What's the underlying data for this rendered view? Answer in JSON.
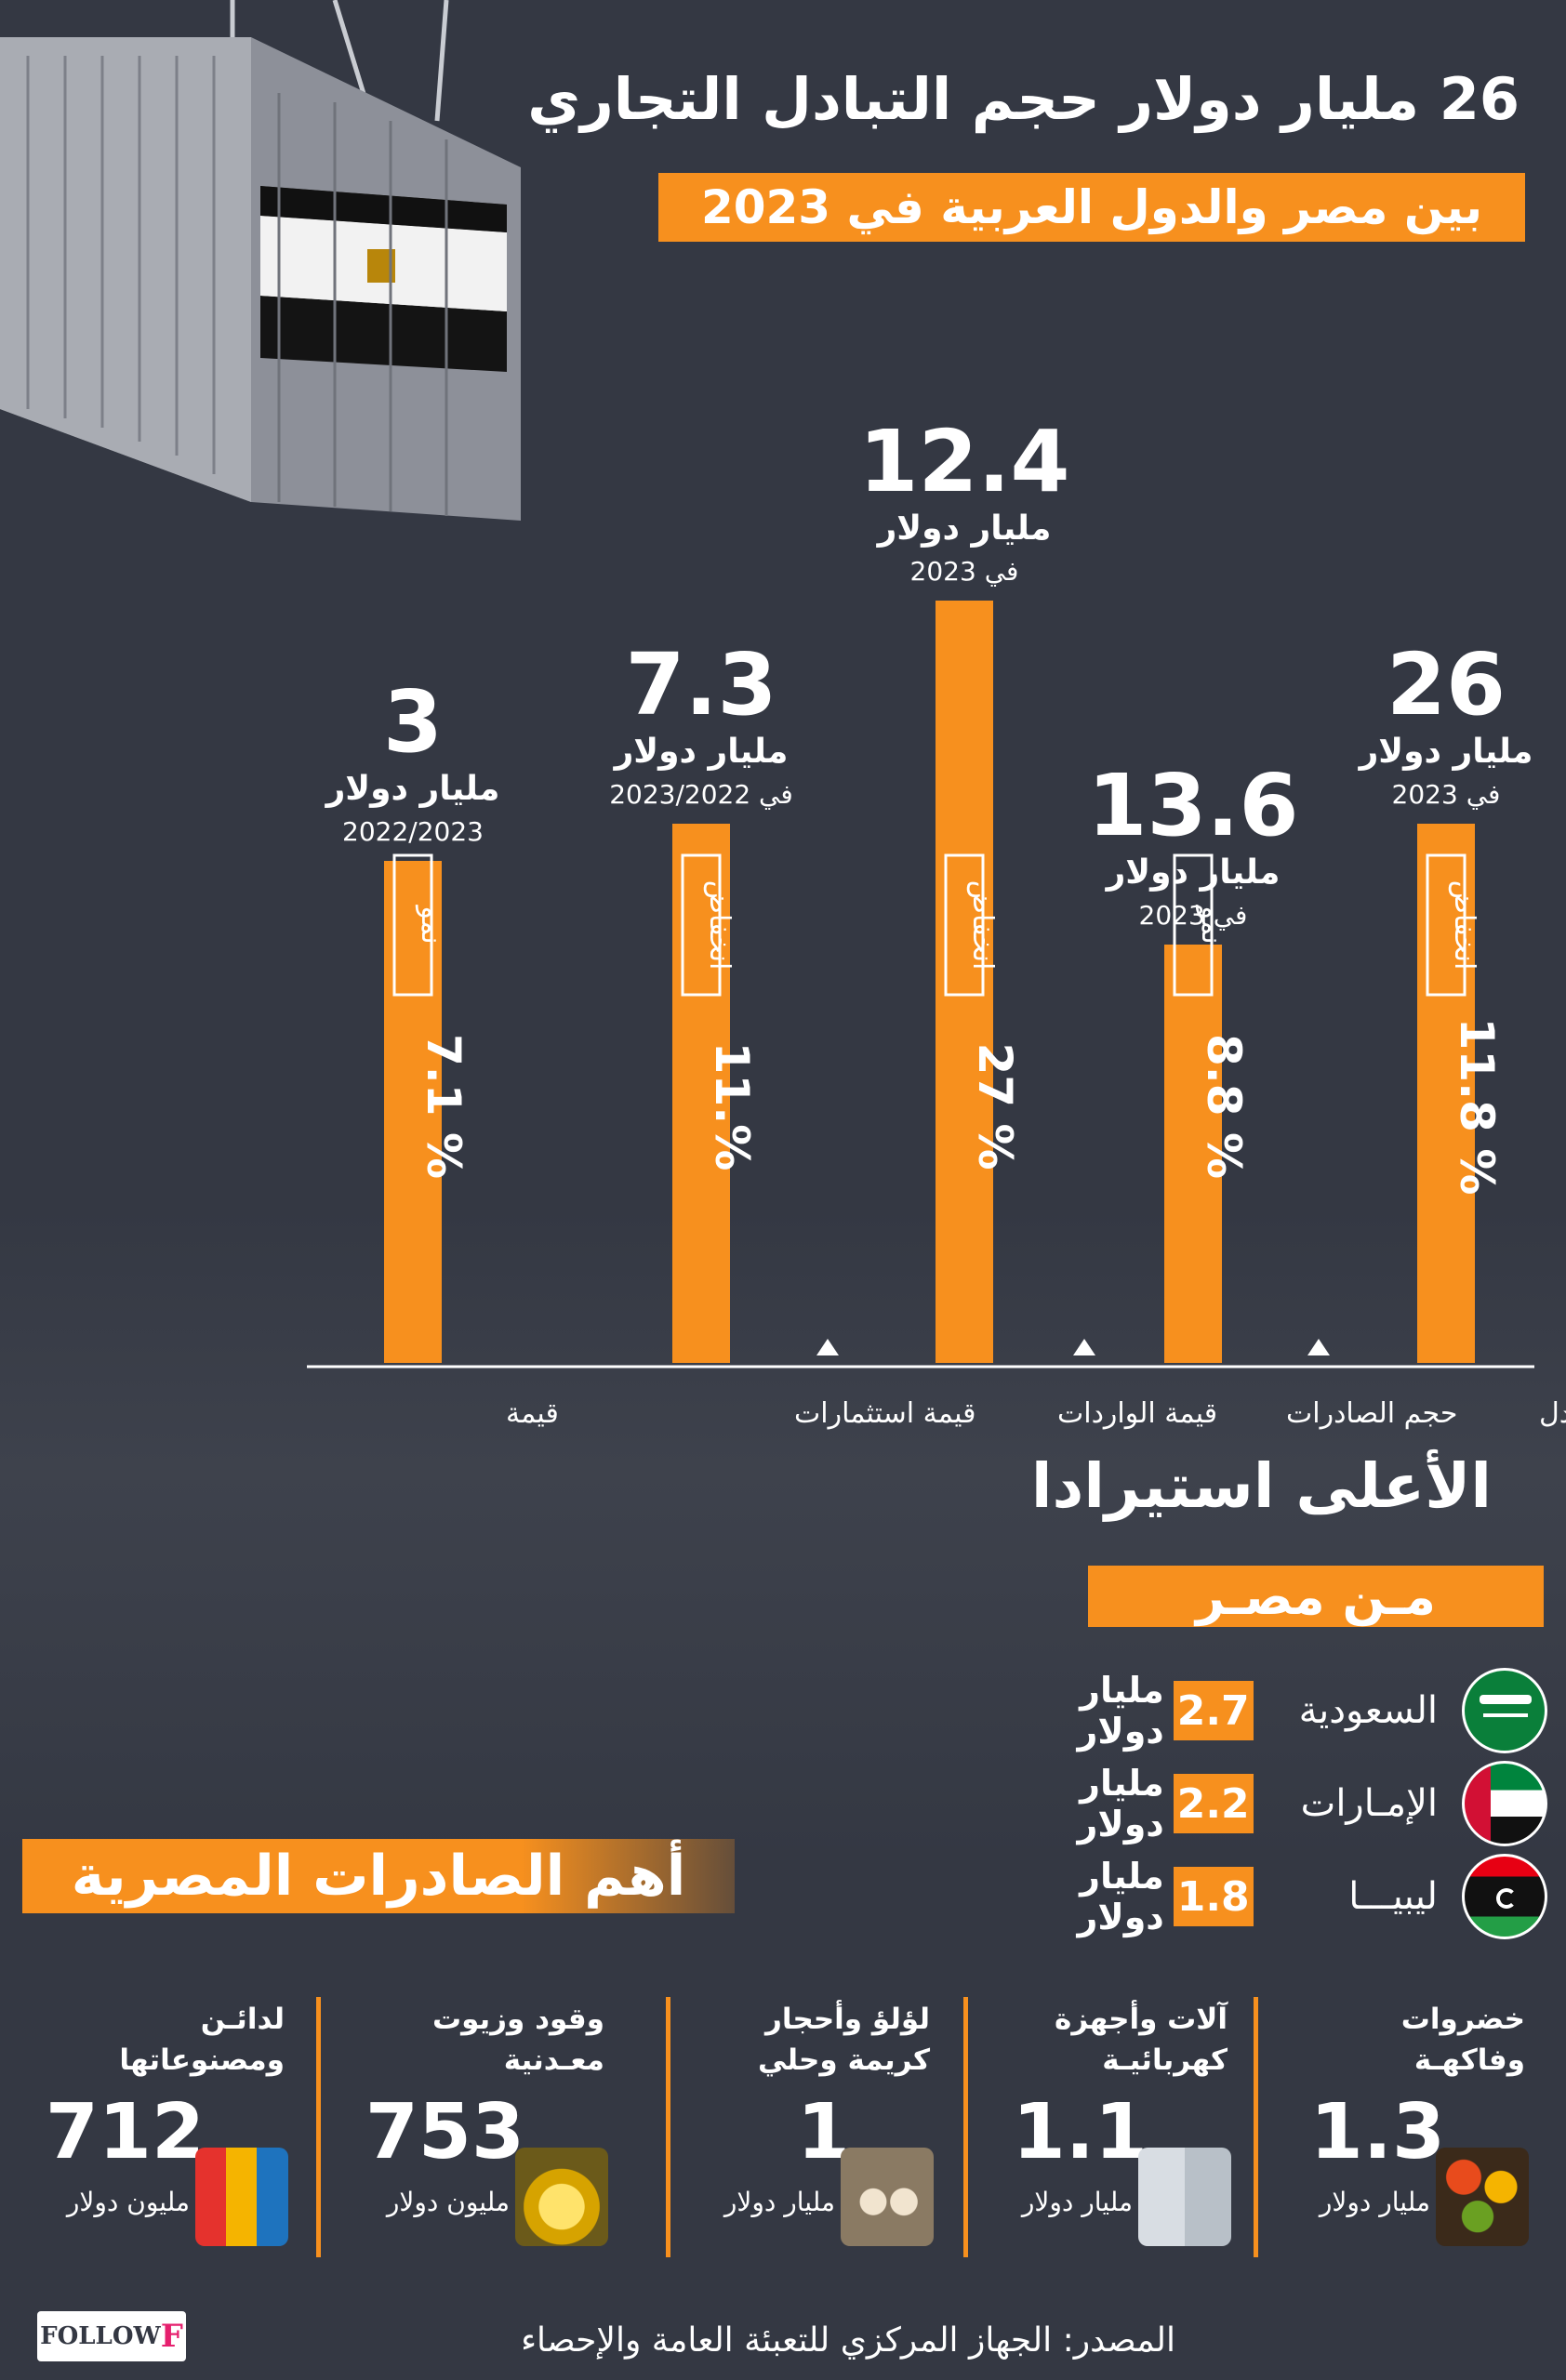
{
  "header": {
    "title": "26 مليار دولار حجم التبادل التجاري",
    "subtitle": "بين مصر والدول العربية في 2023"
  },
  "chart_data": {
    "type": "bar",
    "categories": [
      "حجم التبادل التجاري بين مصر والدول العربية",
      "حجم الصادرات المصرية",
      "قيمة الواردات المصرية",
      "قيمة استثمارات الدول العربية في مصر",
      "قيمة الاستثمارات المصرية في الدول العربية"
    ],
    "values": [
      26,
      13.6,
      12.4,
      7.3,
      3
    ],
    "value_labels": [
      "26",
      "13.6",
      "12.4",
      "7.3",
      "3"
    ],
    "unit": "مليار دولار",
    "periods": [
      "في 2023",
      "في 2023",
      "في 2023",
      "في 2023/2022",
      "2022/2023"
    ],
    "change_labels": [
      "11.8%",
      "8.8%",
      "27%",
      "11%",
      "7.1%"
    ],
    "change_texts": [
      "% 11.8",
      "% 8.8",
      "% 27",
      "%.11",
      "% 7.1"
    ],
    "change_direction": [
      "انخفاض",
      "نمو",
      "انخفاض",
      "انخفاض",
      "نمو"
    ],
    "bar_color": "#f7901e",
    "axis_ticks": "none"
  },
  "imports": {
    "title": "الأعلى استيرادا",
    "subtitle": "مـن مصـر",
    "unit": "مليار دولار",
    "rows": [
      {
        "country": "السعودية",
        "value": "2.7",
        "flag": "saudi-flag"
      },
      {
        "country": "الإمـارات",
        "value": "2.2",
        "flag": "uae-flag"
      },
      {
        "country": "ليبيـــا",
        "value": "1.8",
        "flag": "libya-flag"
      }
    ]
  },
  "exports": {
    "title": "أهم الصادرات المصرية",
    "items": [
      {
        "name": "خضروات وفاكهـة",
        "value": "1.3",
        "unit": "مليار دولار",
        "icon": "fruits-icon"
      },
      {
        "name": "آلات وأجهزة كهربائيـة",
        "value": "1.1",
        "unit": "مليار دولار",
        "icon": "appliances-icon"
      },
      {
        "name": "لؤلؤ وأحجار كريمة وحلي",
        "value": "1",
        "unit": "مليار دولار",
        "icon": "pearl-icon"
      },
      {
        "name": "وقود وزيوت معـدنية",
        "value": "753",
        "unit": "مليون دولار",
        "icon": "oil-icon"
      },
      {
        "name": "لدائـن ومصنوعاتها",
        "value": "712",
        "unit": "مليون دولار",
        "icon": "plastics-icon"
      }
    ]
  },
  "footer": {
    "source": "المصدر: الجهاز المركزي للتعبئة العامة والإحصاء",
    "logo_text": "FOLLOW"
  },
  "colors": {
    "background": "#343843",
    "accent": "#f7901e",
    "text": "#ffffff"
  }
}
